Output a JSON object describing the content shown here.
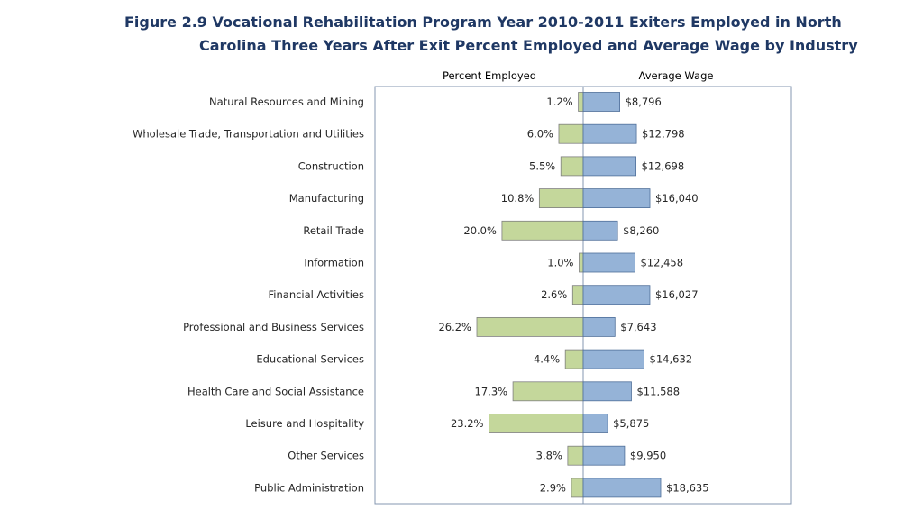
{
  "title": {
    "line1": "Figure 2.9 Vocational Rehabilitation Program Year 2010-2011 Exiters Employed in North",
    "line2": "Carolina Three Years After Exit Percent Employed and Average Wage by Industry"
  },
  "colors": {
    "percent_fill": "#c4d79b",
    "percent_stroke": "#7f7f7f",
    "wage_fill": "#95b3d7",
    "wage_stroke": "#4f6f99",
    "frame": "#8497b0",
    "title": "#1f3864"
  },
  "chart_data": {
    "type": "bar",
    "orientation": "horizontal",
    "layout": "back-to-back",
    "title": "Figure 2.9 Vocational Rehabilitation Program Year 2010-2011 Exiters Employed in North Carolina Three Years After Exit Percent Employed and Average Wage by Industry",
    "categories": [
      "Natural Resources and Mining",
      "Wholesale Trade, Transportation and Utilities",
      "Construction",
      "Manufacturing",
      "Retail Trade",
      "Information",
      "Financial Activities",
      "Professional and Business Services",
      "Educational Services",
      "Health Care and Social Assistance",
      "Leisure and Hospitality",
      "Other Services",
      "Public Administration"
    ],
    "series": [
      {
        "name": "Percent Employed",
        "side": "left",
        "values": [
          1.2,
          6.0,
          5.5,
          10.8,
          20.0,
          1.0,
          2.6,
          26.2,
          4.4,
          17.3,
          23.2,
          3.8,
          2.9
        ],
        "labels": [
          "1.2%",
          "6.0%",
          "5.5%",
          "10.8%",
          "20.0%",
          "1.0%",
          "2.6%",
          "26.2%",
          "4.4%",
          "17.3%",
          "23.2%",
          "3.8%",
          "2.9%"
        ]
      },
      {
        "name": "Average Wage",
        "side": "right",
        "values": [
          8796,
          12798,
          12698,
          16040,
          8260,
          12458,
          16027,
          7643,
          14632,
          11588,
          5875,
          9950,
          18635
        ],
        "labels": [
          "$8,796",
          "$12,798",
          "$12,698",
          "$16,040",
          "$8,260",
          "$12,458",
          "$16,027",
          "$7,643",
          "$14,632",
          "$11,588",
          "$5,875",
          "$9,950",
          "$18,635"
        ]
      }
    ],
    "percent_range": [
      0,
      30
    ],
    "wage_range": [
      0,
      18635
    ],
    "grid": false,
    "legend": "none"
  }
}
